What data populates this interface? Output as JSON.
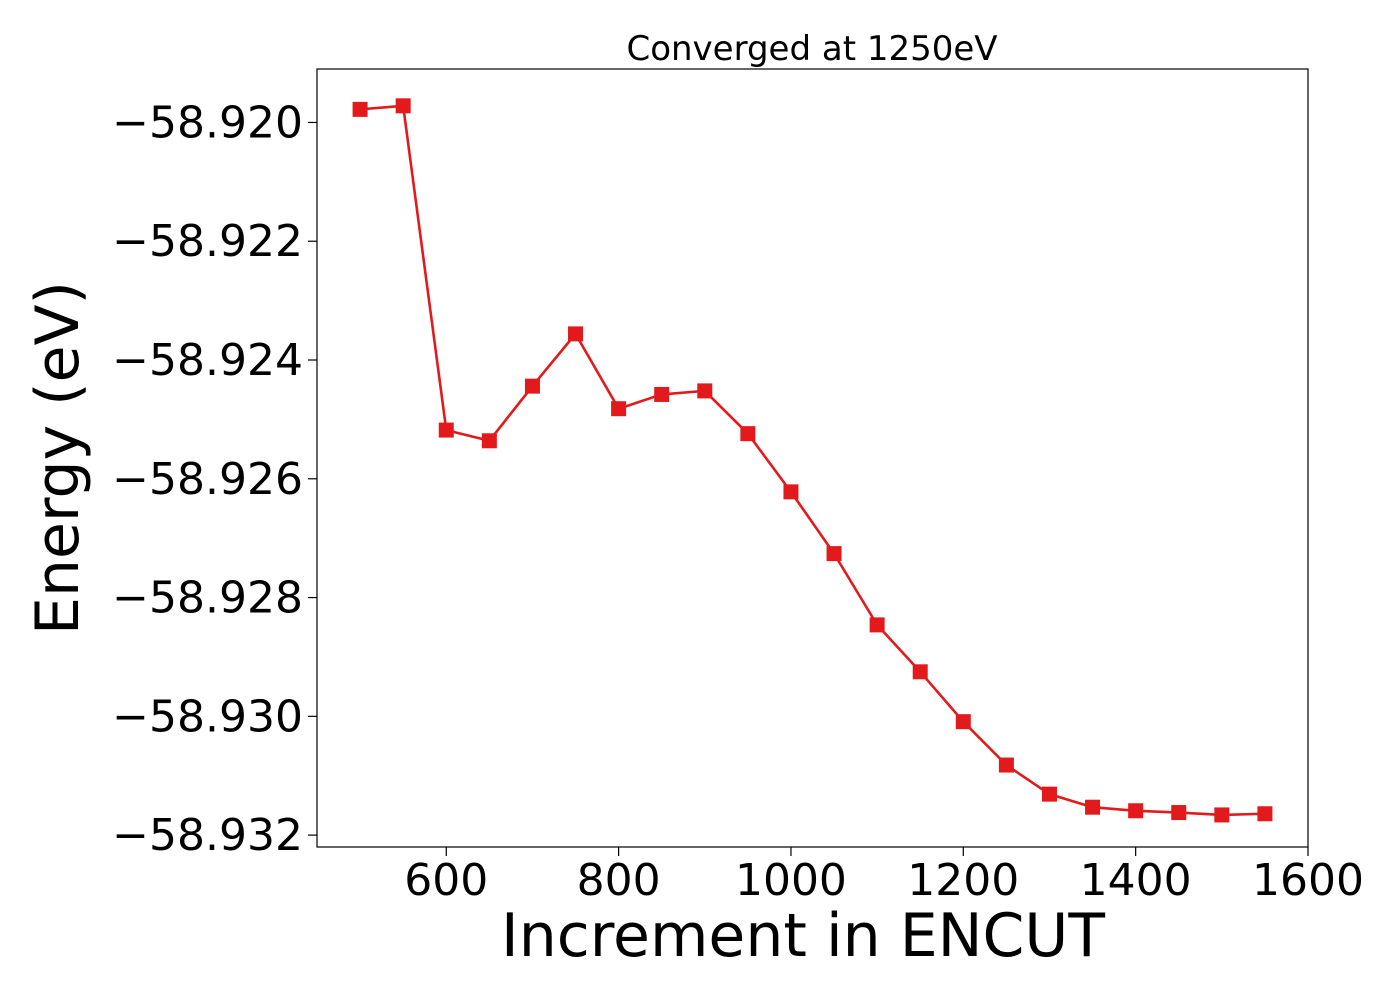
{
  "chart_data": {
    "type": "line",
    "title": "Converged at 1250eV",
    "xlabel": "Increment in ENCUT",
    "ylabel": "Energy (eV)",
    "xlim": [
      450,
      1600
    ],
    "ylim": [
      -58.9322,
      -58.9191
    ],
    "x_ticks": [
      600,
      800,
      1000,
      1200,
      1400,
      1600
    ],
    "x_tick_labels": [
      "600",
      "800",
      "1000",
      "1200",
      "1400",
      "1600"
    ],
    "y_ticks": [
      -58.92,
      -58.922,
      -58.924,
      -58.926,
      -58.928,
      -58.93,
      -58.932
    ],
    "y_tick_labels": [
      "−58.920",
      "−58.922",
      "−58.924",
      "−58.926",
      "−58.928",
      "−58.930",
      "−58.932"
    ],
    "grid": false,
    "legend": "none",
    "series": [
      {
        "color": "#e31a1c",
        "marker": "square",
        "x": [
          500,
          550,
          600,
          650,
          700,
          750,
          800,
          850,
          900,
          950,
          1000,
          1050,
          1100,
          1150,
          1200,
          1250,
          1300,
          1350,
          1400,
          1450,
          1500,
          1550
        ],
        "y": [
          -58.91978,
          -58.91972,
          -58.92518,
          -58.92536,
          -58.92444,
          -58.92356,
          -58.92482,
          -58.92458,
          -58.92452,
          -58.92524,
          -58.92622,
          -58.92726,
          -58.92846,
          -58.92925,
          -58.93009,
          -58.93082,
          -58.93131,
          -58.93153,
          -58.93159,
          -58.93162,
          -58.93166,
          -58.93164
        ]
      }
    ]
  }
}
